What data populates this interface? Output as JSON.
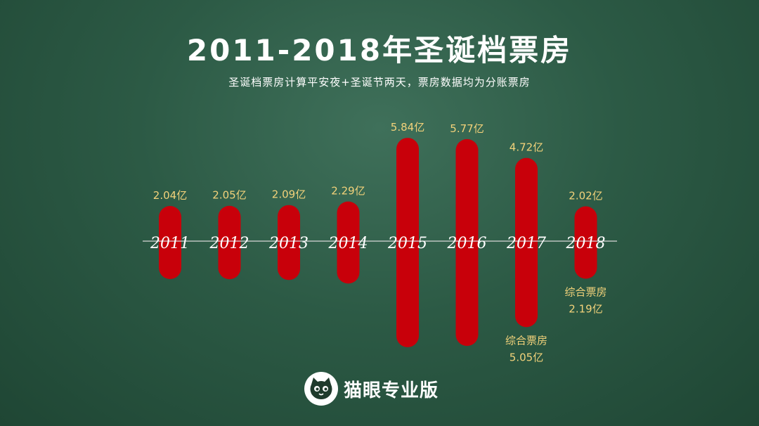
{
  "header": {
    "title": "2011-2018年圣诞档票房",
    "subtitle": "圣诞档票房计算平安夜+圣诞节两天，票房数据均为分账票房"
  },
  "colors": {
    "bar": "#c8000a",
    "value_label": "#f2d27a",
    "note_label": "#f2d27a",
    "axis_line": "#d8d8d8",
    "year_label": "#ffffff"
  },
  "chart_data": {
    "type": "bar",
    "categories": [
      "2011",
      "2012",
      "2013",
      "2014",
      "2015",
      "2016",
      "2017",
      "2018"
    ],
    "values": [
      2.04,
      2.05,
      2.09,
      2.29,
      5.84,
      5.77,
      4.72,
      2.02
    ],
    "value_labels": [
      "2.04亿",
      "2.05亿",
      "2.09亿",
      "2.29亿",
      "5.84亿",
      "5.77亿",
      "4.72亿",
      "2.02亿"
    ],
    "annotations": [
      {
        "category": "2017",
        "label": "综合票房",
        "value": 5.05,
        "value_label": "5.05亿"
      },
      {
        "category": "2018",
        "label": "综合票房",
        "value": 2.19,
        "value_label": "2.19亿"
      }
    ],
    "unit": "亿"
  },
  "footer": {
    "logo_icon": "cat-face-icon",
    "logo_text": "猫眼专业版"
  }
}
